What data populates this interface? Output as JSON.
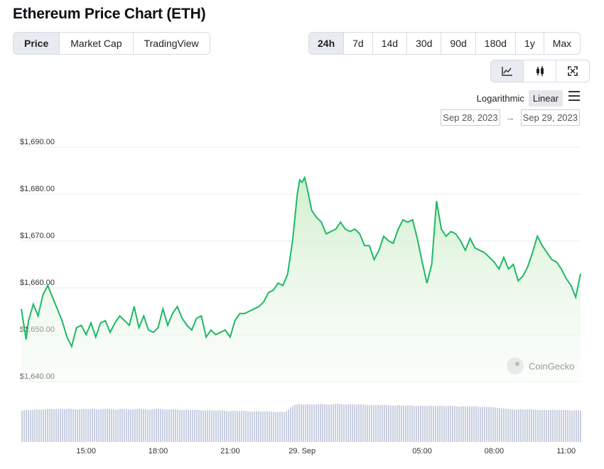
{
  "title": "Ethereum Price Chart (ETH)",
  "tabs": [
    {
      "label": "Price",
      "active": true
    },
    {
      "label": "Market Cap",
      "active": false
    },
    {
      "label": "TradingView",
      "active": false
    }
  ],
  "ranges": [
    {
      "label": "24h",
      "active": true
    },
    {
      "label": "7d",
      "active": false
    },
    {
      "label": "14d",
      "active": false
    },
    {
      "label": "30d",
      "active": false
    },
    {
      "label": "90d",
      "active": false
    },
    {
      "label": "180d",
      "active": false
    },
    {
      "label": "1y",
      "active": false
    },
    {
      "label": "Max",
      "active": false
    }
  ],
  "chart_types": [
    {
      "icon": "line-chart-icon",
      "active": true
    },
    {
      "icon": "candlestick-icon",
      "active": false
    },
    {
      "icon": "fullscreen-icon",
      "active": false
    }
  ],
  "scale": {
    "log_label": "Logarithmic",
    "linear_label": "Linear",
    "selected": "Linear"
  },
  "date_range": {
    "from": "Sep 28, 2023",
    "arrow": "→",
    "to": "Sep 29, 2023"
  },
  "watermark": "CoinGecko",
  "colors": {
    "line": "#1db964",
    "fill": "#d6f0d4",
    "volume": "#c9cfe0",
    "grid": "#eeeeee"
  },
  "chart_data": {
    "type": "line",
    "ylim": [
      1640,
      1690
    ],
    "yticks": [
      {
        "value": 1690,
        "label": "$1,690.00"
      },
      {
        "value": 1680,
        "label": "$1,680.00"
      },
      {
        "value": 1670,
        "label": "$1,670.00"
      },
      {
        "value": 1660,
        "label": "$1,660.00"
      },
      {
        "value": 1650,
        "label": "$1,650.00"
      },
      {
        "value": 1640,
        "label": "$1,640.00"
      }
    ],
    "xlim": [
      12.3,
      35.6
    ],
    "xticks": [
      {
        "value": 15,
        "label": "15:00"
      },
      {
        "value": 18,
        "label": "18:00"
      },
      {
        "value": 21,
        "label": "21:00"
      },
      {
        "value": 24,
        "label": "29. Sep"
      },
      {
        "value": 29,
        "label": "05:00"
      },
      {
        "value": 32,
        "label": "08:00"
      },
      {
        "value": 35,
        "label": "11:00"
      }
    ],
    "x": [
      12.3,
      12.5,
      12.6,
      12.8,
      13.0,
      13.2,
      13.4,
      13.6,
      13.8,
      14.0,
      14.2,
      14.4,
      14.6,
      14.8,
      15.0,
      15.2,
      15.4,
      15.6,
      15.8,
      16.0,
      16.2,
      16.4,
      16.6,
      16.8,
      17.0,
      17.2,
      17.4,
      17.6,
      17.8,
      18.0,
      18.2,
      18.4,
      18.6,
      18.8,
      19.0,
      19.2,
      19.4,
      19.6,
      19.8,
      20.0,
      20.2,
      20.4,
      20.6,
      20.8,
      21.0,
      21.2,
      21.4,
      21.6,
      21.8,
      22.0,
      22.2,
      22.4,
      22.6,
      22.8,
      23.0,
      23.2,
      23.4,
      23.6,
      23.8,
      23.9,
      24.0,
      24.1,
      24.2,
      24.4,
      24.6,
      24.8,
      25.0,
      25.2,
      25.4,
      25.6,
      25.8,
      26.0,
      26.2,
      26.4,
      26.6,
      26.8,
      27.0,
      27.2,
      27.4,
      27.6,
      27.8,
      28.0,
      28.2,
      28.4,
      28.6,
      28.8,
      29.0,
      29.2,
      29.4,
      29.6,
      29.8,
      30.0,
      30.2,
      30.4,
      30.6,
      30.8,
      31.0,
      31.2,
      31.4,
      31.6,
      31.8,
      32.0,
      32.2,
      32.4,
      32.6,
      32.8,
      33.0,
      33.2,
      33.4,
      33.6,
      33.8,
      34.0,
      34.2,
      34.4,
      34.6,
      34.8,
      35.0,
      35.2,
      35.4,
      35.6
    ],
    "values": [
      1655.5,
      1649.0,
      1653.0,
      1656.5,
      1654.0,
      1658.5,
      1660.5,
      1658.0,
      1655.5,
      1653.0,
      1649.5,
      1647.5,
      1651.5,
      1652.0,
      1650.0,
      1652.5,
      1649.5,
      1652.5,
      1653.0,
      1650.5,
      1652.5,
      1654.0,
      1653.0,
      1652.0,
      1656.0,
      1651.5,
      1654.0,
      1651.0,
      1650.5,
      1651.5,
      1655.5,
      1652.0,
      1654.5,
      1656.0,
      1653.5,
      1652.0,
      1651.0,
      1653.5,
      1654.0,
      1649.5,
      1651.0,
      1650.0,
      1650.5,
      1651.0,
      1649.5,
      1653.0,
      1654.5,
      1654.5,
      1655.0,
      1655.5,
      1656.0,
      1657.0,
      1659.0,
      1659.5,
      1661.0,
      1660.5,
      1663.0,
      1670.0,
      1680.0,
      1683.0,
      1682.5,
      1683.5,
      1681.5,
      1676.5,
      1675.0,
      1674.0,
      1671.5,
      1672.0,
      1672.5,
      1674.0,
      1672.5,
      1672.0,
      1672.5,
      1671.5,
      1669.0,
      1669.0,
      1666.0,
      1668.0,
      1671.0,
      1670.0,
      1669.5,
      1672.5,
      1674.5,
      1674.0,
      1674.5,
      1670.5,
      1665.5,
      1661.0,
      1665.0,
      1678.5,
      1672.5,
      1671.0,
      1672.0,
      1671.5,
      1670.0,
      1668.0,
      1670.5,
      1668.5,
      1668.0,
      1667.5,
      1666.5,
      1665.5,
      1664.0,
      1666.5,
      1664.0,
      1665.0,
      1661.5,
      1662.5,
      1664.5,
      1667.5,
      1671.0,
      1669.0,
      1667.5,
      1666.0,
      1665.5,
      1664.0,
      1662.0,
      1660.5,
      1658.0,
      1663.0
    ],
    "volume": [
      0.63,
      0.65,
      0.64,
      0.66,
      0.65,
      0.66,
      0.67,
      0.66,
      0.67,
      0.66,
      0.67,
      0.66,
      0.65,
      0.67,
      0.66,
      0.67,
      0.65,
      0.66,
      0.67,
      0.66,
      0.65,
      0.67,
      0.66,
      0.65,
      0.66,
      0.67,
      0.66,
      0.65,
      0.66,
      0.67,
      0.66,
      0.65,
      0.66,
      0.65,
      0.64,
      0.65,
      0.64,
      0.65,
      0.64,
      0.63,
      0.64,
      0.63,
      0.64,
      0.63,
      0.62,
      0.63,
      0.62,
      0.63,
      0.62,
      0.61,
      0.62,
      0.61,
      0.62,
      0.61,
      0.6,
      0.61,
      0.6,
      0.68,
      0.75,
      0.76,
      0.75,
      0.76,
      0.75,
      0.76,
      0.76,
      0.75,
      0.76,
      0.77,
      0.76,
      0.75,
      0.76,
      0.75,
      0.76,
      0.75,
      0.74,
      0.75,
      0.74,
      0.75,
      0.74,
      0.73,
      0.74,
      0.73,
      0.74,
      0.73,
      0.72,
      0.73,
      0.72,
      0.73,
      0.72,
      0.73,
      0.72,
      0.73,
      0.72,
      0.71,
      0.72,
      0.71,
      0.72,
      0.71,
      0.7,
      0.71,
      0.7,
      0.69,
      0.68,
      0.67,
      0.66,
      0.65,
      0.66,
      0.65,
      0.66,
      0.65,
      0.64,
      0.65,
      0.64,
      0.65,
      0.64,
      0.65,
      0.64,
      0.63,
      0.64,
      0.63
    ]
  }
}
